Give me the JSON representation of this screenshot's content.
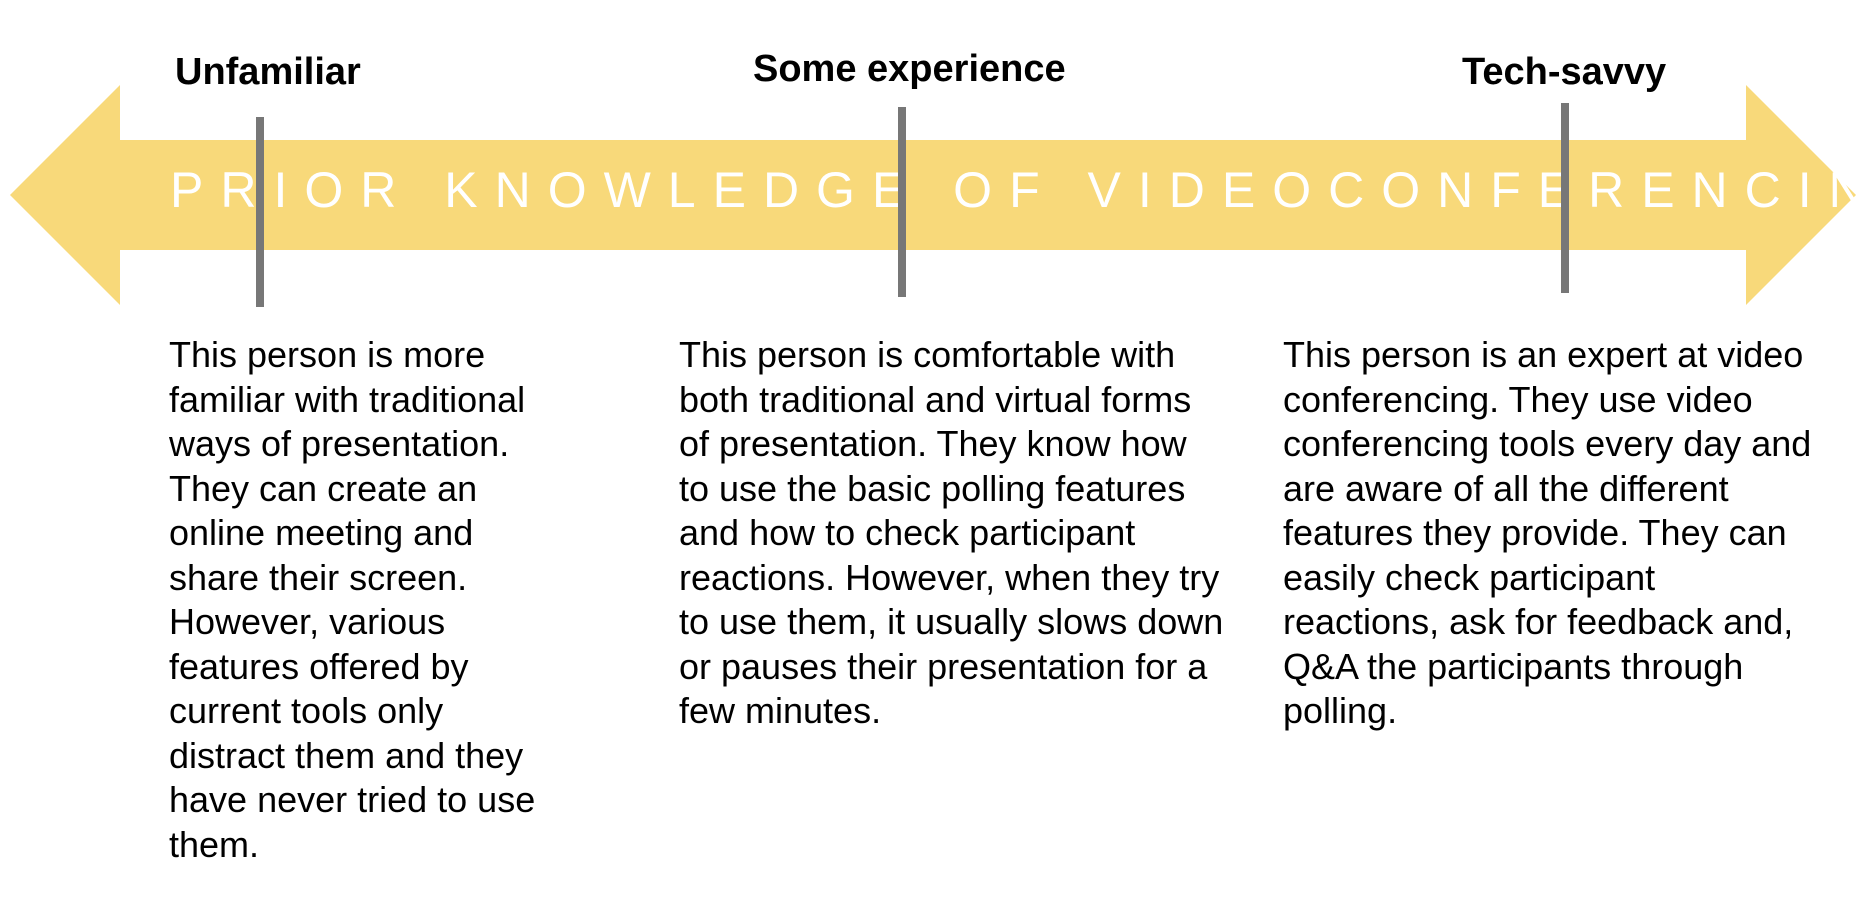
{
  "colors": {
    "arrow_fill": "#f8d97a",
    "tick": "#777777",
    "axis_title_text": "#ffffff"
  },
  "axis_title": "PRIOR KNOWLEDGE OF VIDEOCONFERENCING",
  "levels": [
    {
      "label": "Unfamiliar",
      "description": "This person is more familiar with traditional ways of presentation. They can create an online meeting and share their screen. However, various features offered by current tools only distract them and they have never tried to use them."
    },
    {
      "label": "Some experience",
      "description": "This person is comfortable with both traditional and virtual forms of presentation. They know how to use the basic polling features and how to check participant reactions. However, when they try to use them, it usually slows down or pauses their presentation for a few minutes."
    },
    {
      "label": "Tech-savvy",
      "description": "This person is an expert at video conferencing. They use video conferencing tools every day and are aware of all the different features they provide. They can easily check participant reactions, ask for feedback and, Q&A the participants through polling."
    }
  ]
}
